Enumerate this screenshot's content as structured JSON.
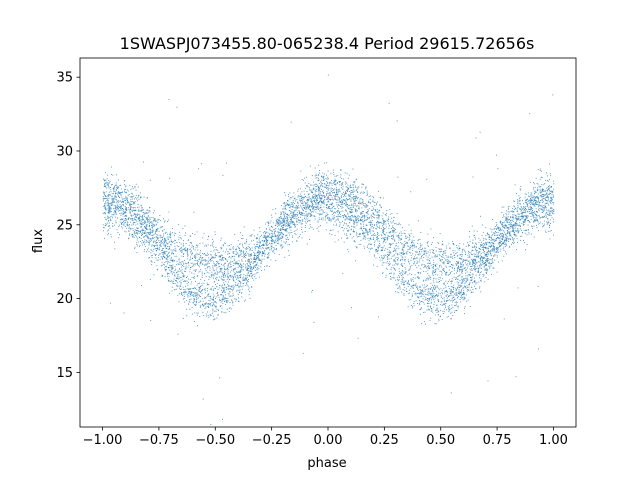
{
  "chart_data": {
    "type": "scatter",
    "title": "1SWASPJ073455.80-065238.4 Period 29615.72656s",
    "xlabel": "phase",
    "ylabel": "flux",
    "xlim": [
      -1.1,
      1.1
    ],
    "ylim": [
      11.3,
      36.3
    ],
    "x_ticks": [
      -1.0,
      -0.75,
      -0.5,
      -0.25,
      0.0,
      0.25,
      0.5,
      0.75,
      1.0
    ],
    "x_tick_labels": [
      "−1.00",
      "−0.75",
      "−0.50",
      "−0.25",
      "0.00",
      "0.25",
      "0.50",
      "0.75",
      "1.00"
    ],
    "y_ticks": [
      15,
      20,
      25,
      30,
      35
    ],
    "y_tick_labels": [
      "15",
      "20",
      "25",
      "30",
      "35"
    ],
    "grid": false,
    "point_color": "#1f77b4",
    "series": [
      {
        "values_description_free": true,
        "x": [
          -1.0,
          -0.95,
          -0.9,
          -0.85,
          -0.8,
          -0.75,
          -0.7,
          -0.65,
          -0.6,
          -0.55,
          -0.5,
          -0.45,
          -0.4,
          -0.35,
          -0.3,
          -0.25,
          -0.2,
          -0.15,
          -0.1,
          -0.05,
          0.0,
          0.05,
          0.1,
          0.15,
          0.2,
          0.25,
          0.3,
          0.35,
          0.4,
          0.45,
          0.5,
          0.55,
          0.6,
          0.65,
          0.7,
          0.75,
          0.8,
          0.85,
          0.9,
          0.95,
          1.0
        ],
        "y_upper": [
          27.3,
          27.0,
          26.6,
          26.0,
          25.2,
          24.3,
          23.6,
          23.1,
          22.8,
          22.6,
          22.5,
          22.5,
          22.6,
          22.9,
          23.4,
          24.0,
          24.9,
          25.8,
          26.6,
          27.2,
          27.5,
          27.4,
          27.0,
          26.5,
          25.8,
          25.0,
          24.2,
          23.5,
          23.0,
          22.7,
          22.5,
          22.5,
          22.6,
          22.9,
          23.4,
          24.2,
          25.1,
          25.9,
          26.6,
          27.1,
          27.3
        ],
        "y_lower": [
          26.0,
          25.9,
          25.6,
          25.0,
          24.2,
          23.2,
          22.0,
          21.0,
          20.3,
          20.0,
          20.0,
          20.3,
          21.0,
          22.0,
          23.1,
          24.1,
          25.0,
          25.7,
          26.1,
          26.3,
          26.2,
          25.9,
          25.4,
          24.8,
          24.0,
          23.1,
          22.1,
          21.1,
          20.4,
          20.1,
          20.0,
          20.2,
          20.8,
          21.7,
          22.7,
          23.7,
          24.6,
          25.3,
          25.8,
          26.0,
          26.0
        ]
      }
    ]
  }
}
